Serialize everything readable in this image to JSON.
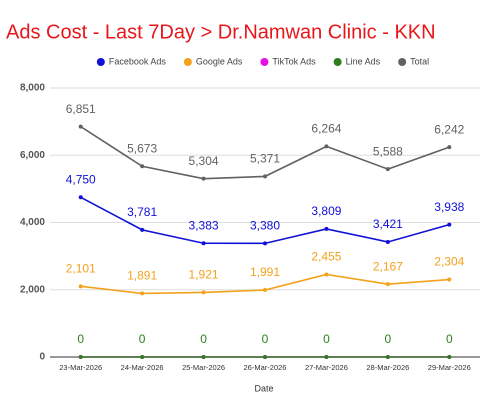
{
  "chart_data": {
    "type": "line",
    "title": "Ads Cost - Last 7Day > Dr.Namwan Clinic - KKN",
    "x_label": "Date",
    "categories": [
      "23-Mar-2026",
      "24-Mar-2026",
      "25-Mar-2026",
      "26-Mar-2026",
      "27-Mar-2026",
      "28-Mar-2026",
      "29-Mar-2026"
    ],
    "ylim": [
      0,
      8000
    ],
    "yticks": [
      0,
      {
        "value": 2000,
        "label": "2,000"
      },
      {
        "value": 4000,
        "label": "4,000"
      },
      {
        "value": 6000,
        "label": "6,000"
      },
      {
        "value": 8000,
        "label": "8,000"
      }
    ],
    "grid": true,
    "legend": "top",
    "series": [
      {
        "name": "Facebook Ads",
        "color": "#1010d8",
        "values": [
          4750,
          3781,
          3383,
          3380,
          3809,
          3421,
          3938
        ],
        "value_labels": [
          "4,750",
          "3,781",
          "3,383",
          "3,380",
          "3,809",
          "3,421",
          "3,938"
        ]
      },
      {
        "name": "Google Ads",
        "color": "#f4a21c",
        "values": [
          2101,
          1891,
          1921,
          1991,
          2455,
          2167,
          2304
        ],
        "value_labels": [
          "2,101",
          "1,891",
          "1,921",
          "1,991",
          "2,455",
          "2,167",
          "2,304"
        ]
      },
      {
        "name": "TikTok Ads",
        "color": "#e410e4",
        "values": [
          0,
          0,
          0,
          0,
          0,
          0,
          0
        ],
        "data_labels": false
      },
      {
        "name": "Line Ads",
        "color": "#2f7d1e",
        "values": [
          0,
          0,
          0,
          0,
          0,
          0,
          0
        ]
      },
      {
        "name": "Total",
        "color": "#616161",
        "values": [
          6851,
          5673,
          5304,
          5371,
          6264,
          5588,
          6242
        ],
        "value_labels": [
          "6,851",
          "5,673",
          "5,304",
          "5,371",
          "6,264",
          "5,588",
          "6,242"
        ]
      }
    ]
  }
}
